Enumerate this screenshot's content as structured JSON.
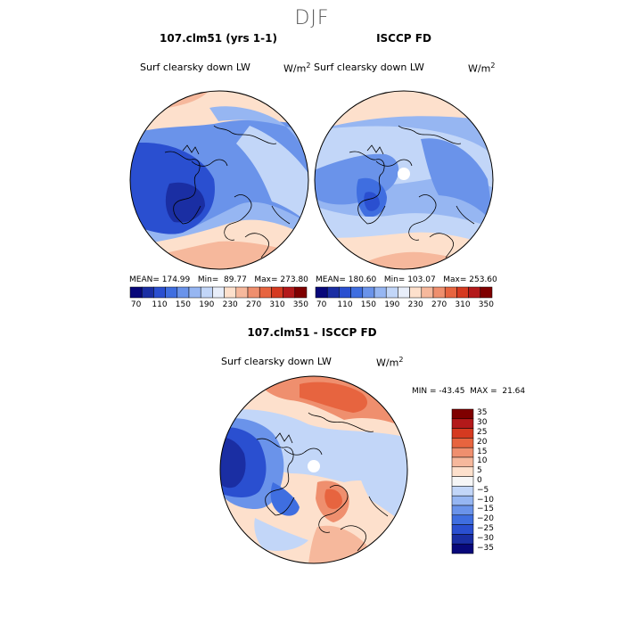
{
  "title": "DJF",
  "panels": {
    "left": {
      "title": "107.clm51 (yrs 1-1)",
      "variable": "Surf clearsky down LW",
      "unit": "W/m",
      "unit_exp": "2",
      "stats": "MEAN= 174.99   Min=  89.77   Max= 273.80"
    },
    "right": {
      "title": "ISCCP FD",
      "variable": "Surf clearsky down LW",
      "unit": "W/m",
      "unit_exp": "2",
      "stats": "MEAN= 180.60   Min= 103.07   Max= 253.60"
    },
    "diff": {
      "title": "107.clm51 - ISCCP FD",
      "variable": "Surf clearsky down LW",
      "unit": "W/m",
      "unit_exp": "2",
      "stats": "MIN = -43.45  MAX =  21.64"
    }
  },
  "colorbar_abs": {
    "colors": [
      "#08087a",
      "#1a2ea3",
      "#2a4fd0",
      "#3f6ee0",
      "#6a93ea",
      "#96b6f2",
      "#c2d6f8",
      "#e8eefa",
      "#fde0cc",
      "#f6b89c",
      "#ef8f6e",
      "#e7643f",
      "#d53a20",
      "#b3191a",
      "#7f0000"
    ],
    "labels": [
      "70",
      "110",
      "150",
      "190",
      "230",
      "270",
      "310",
      "350"
    ]
  },
  "colorbar_diff": {
    "colors": [
      "#7f0000",
      "#b3191a",
      "#d53a20",
      "#e7643f",
      "#ef8f6e",
      "#f6b89c",
      "#fde0cc",
      "#f6f6f6",
      "#c2d6f8",
      "#96b6f2",
      "#6a93ea",
      "#3f6ee0",
      "#2a4fd0",
      "#1a2ea3",
      "#08087a"
    ],
    "labels": [
      "35",
      "30",
      "25",
      "20",
      "15",
      "10",
      "5",
      "0",
      "−5",
      "−10",
      "−15",
      "−20",
      "−25",
      "−30",
      "−35"
    ]
  },
  "map_colors": {
    "warm_far": "#e7643f",
    "warm": "#f6b89c",
    "warm_light": "#fde0cc",
    "neutral": "#eef2fa",
    "cool_light": "#c2d6f8",
    "cool": "#96b6f2",
    "mid_blue": "#6a93ea",
    "blue": "#3f6ee0",
    "deep_blue": "#2a4fd0",
    "darkest": "#1a2ea3"
  }
}
